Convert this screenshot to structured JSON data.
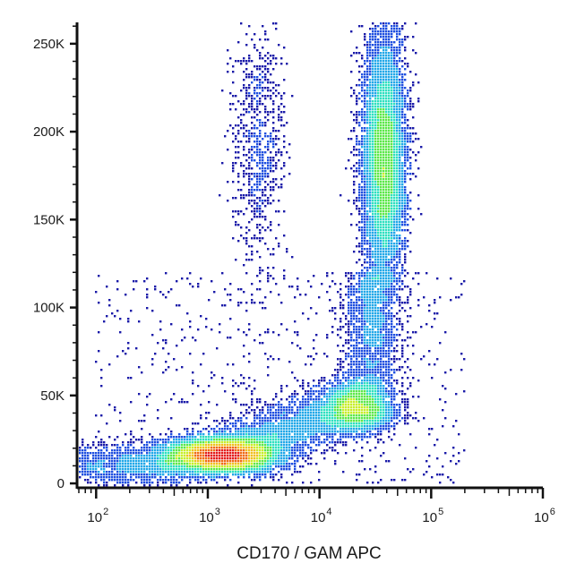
{
  "chart_data": {
    "type": "scatter",
    "subtype": "flow-cytometry-density-dot-plot",
    "title": "",
    "xlabel": "CD170 / GAM APC",
    "ylabel": "",
    "x_scale": "log",
    "xlim": [
      70,
      1000000
    ],
    "ylim": [
      -2000,
      262144
    ],
    "x_ticks": [
      {
        "base": "10",
        "exp": "2",
        "value": 100
      },
      {
        "base": "10",
        "exp": "3",
        "value": 1000
      },
      {
        "base": "10",
        "exp": "4",
        "value": 10000
      },
      {
        "base": "10",
        "exp": "5",
        "value": 100000
      },
      {
        "base": "10",
        "exp": "6",
        "value": 1000000
      }
    ],
    "y_ticks": [
      {
        "label": "0",
        "value": 0
      },
      {
        "label": "50K",
        "value": 50000
      },
      {
        "label": "100K",
        "value": 100000
      },
      {
        "label": "150K",
        "value": 150000
      },
      {
        "label": "200K",
        "value": 200000
      },
      {
        "label": "250K",
        "value": 250000
      }
    ],
    "grid": false,
    "legend": "none",
    "color_map": [
      "#1a1aa8",
      "#1f4fe0",
      "#22a8e8",
      "#2ee0c0",
      "#5ce84a",
      "#c8ee2a",
      "#f0c020",
      "#f06a14",
      "#e41c1c"
    ],
    "populations": [
      {
        "name": "",
        "center_x": 1300,
        "center_y": 16000,
        "spread_log_x": 0.26,
        "spread_y": 5000,
        "weight": 0.36
      },
      {
        "name": "",
        "center_x": 22000,
        "center_y": 43000,
        "spread_log_x": 0.17,
        "spread_y": 7000,
        "weight": 0.14
      },
      {
        "name": "",
        "center_x": 38000,
        "center_y": 185000,
        "spread_log_x": 0.1,
        "spread_y": 38000,
        "weight": 0.38
      },
      {
        "name": "",
        "center_x": 2800,
        "center_y": 195000,
        "spread_log_x": 0.12,
        "spread_y": 35000,
        "weight": 0.04
      }
    ]
  }
}
